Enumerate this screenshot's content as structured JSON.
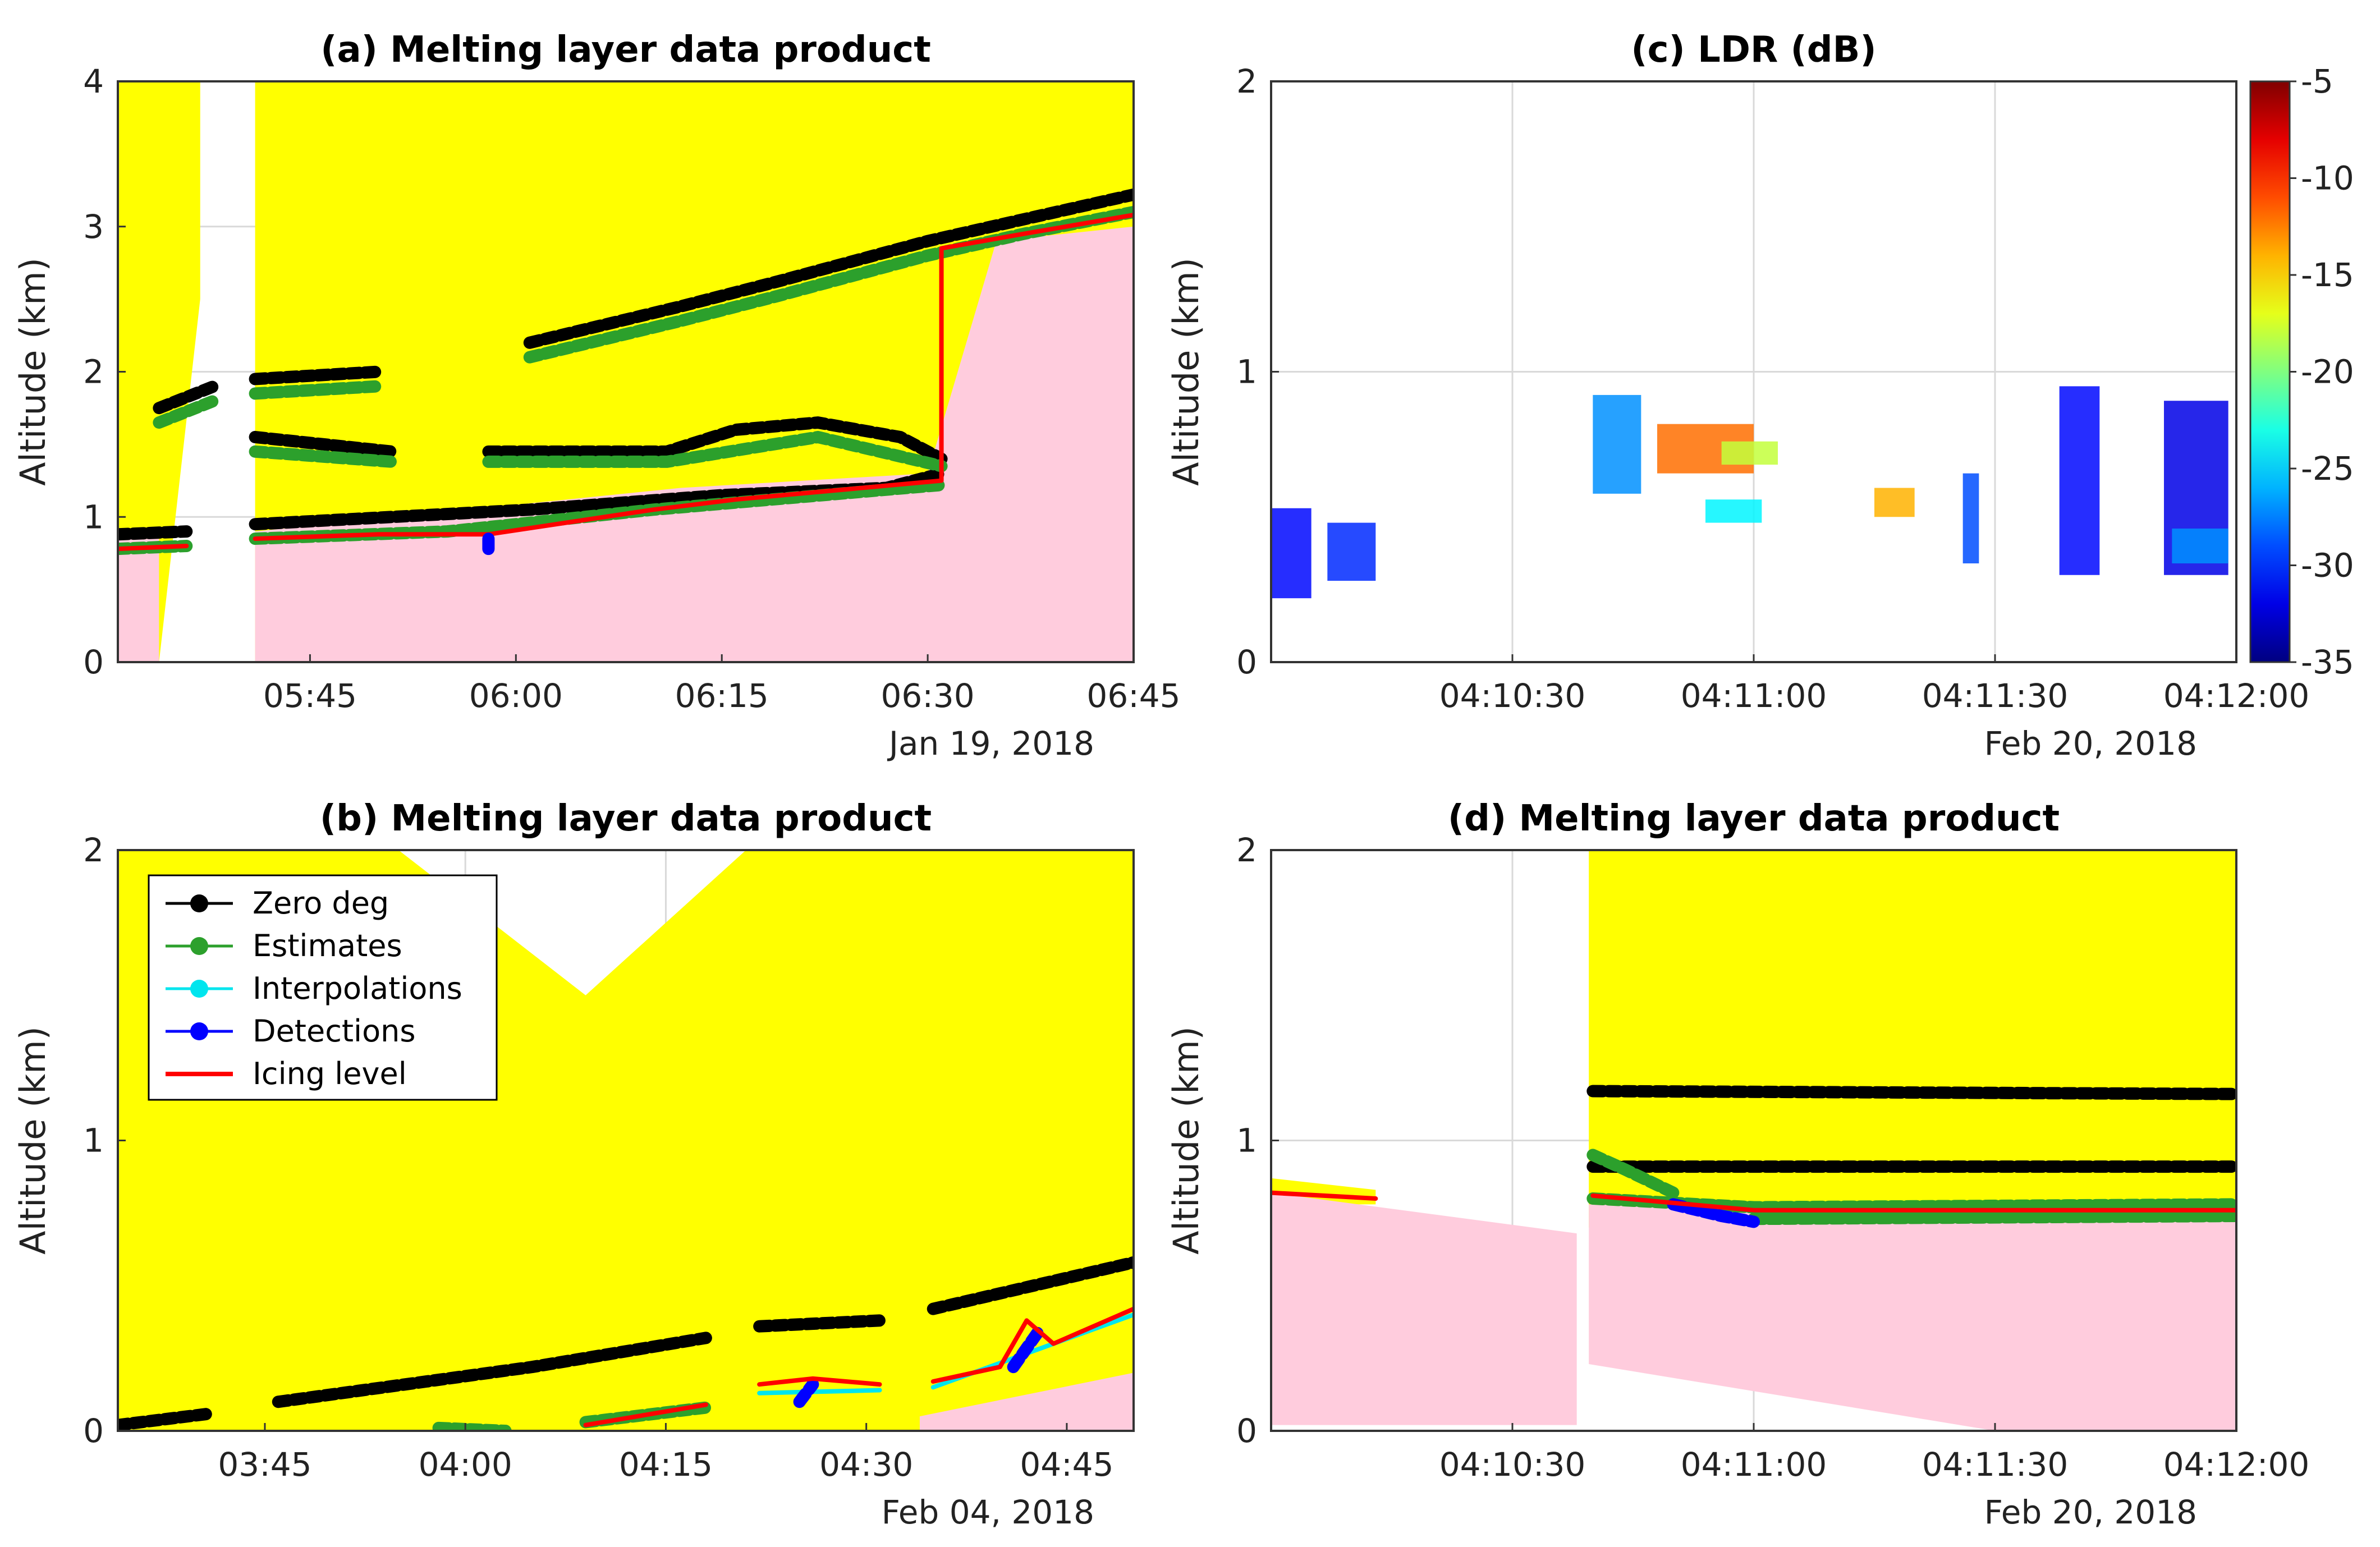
{
  "colors": {
    "yellow": "#ffff00",
    "pink": "#ffccdd",
    "zero_deg": "#000000",
    "estimates": "#2ca02c",
    "interpolations": "#00e5ee",
    "detections": "#0000ff",
    "icing": "#ff0000"
  },
  "chart_data": [
    {
      "id": "a",
      "type": "line",
      "title": "(a) Melting layer data product",
      "ylabel": "Altitude (km)",
      "ylim": [
        0,
        4
      ],
      "yticks": [
        "0",
        "1",
        "2",
        "3",
        "4"
      ],
      "xlim": [
        331,
        405
      ],
      "xtick_values": [
        345,
        360,
        375,
        390,
        405
      ],
      "xticks": [
        "05:45",
        "06:00",
        "06:15",
        "06:30",
        "06:45"
      ],
      "date_label": "Jan 19, 2018",
      "yellow_polygon": [
        [
          331,
          4
        ],
        [
          337,
          4
        ],
        [
          337,
          2.5
        ],
        [
          334,
          0
        ],
        [
          331,
          0
        ]
      ],
      "yellow_polygon2": [
        [
          341,
          4
        ],
        [
          405,
          4
        ],
        [
          405,
          0
        ],
        [
          341,
          0
        ]
      ],
      "pink_regions": [
        [
          [
            331,
            0
          ],
          [
            331,
            0.85
          ],
          [
            334,
            0.85
          ],
          [
            334,
            0
          ]
        ],
        [
          [
            341,
            0
          ],
          [
            341,
            0.9
          ],
          [
            372,
            1.2
          ],
          [
            390,
            1.3
          ],
          [
            395,
            2.9
          ],
          [
            405,
            3.0
          ],
          [
            405,
            0
          ]
        ]
      ],
      "series": [
        {
          "name": "Zero deg",
          "color": "#000000",
          "kind": "points",
          "segments": [
            [
              [
                331,
                0.88
              ],
              [
                336,
                0.9
              ]
            ],
            [
              [
                334,
                1.75
              ],
              [
                338,
                1.9
              ]
            ],
            [
              [
                341,
                1.95
              ],
              [
                350,
                2.0
              ]
            ],
            [
              [
                341,
                1.55
              ],
              [
                351,
                1.45
              ]
            ],
            [
              [
                341,
                0.95
              ],
              [
                351,
                1.0
              ],
              [
                361,
                1.05
              ],
              [
                375,
                1.15
              ],
              [
                387,
                1.2
              ],
              [
                391,
                1.3
              ]
            ],
            [
              [
                358,
                1.45
              ],
              [
                371,
                1.45
              ],
              [
                376,
                1.6
              ],
              [
                382,
                1.65
              ],
              [
                388,
                1.55
              ],
              [
                391,
                1.4
              ]
            ],
            [
              [
                361,
                2.2
              ],
              [
                372,
                2.45
              ],
              [
                379,
                2.62
              ],
              [
                390,
                2.9
              ],
              [
                397,
                3.05
              ],
              [
                405,
                3.22
              ]
            ]
          ]
        },
        {
          "name": "Estimates",
          "color": "#2ca02c",
          "kind": "points",
          "segments": [
            [
              [
                331,
                0.78
              ],
              [
                336,
                0.8
              ]
            ],
            [
              [
                334,
                1.65
              ],
              [
                338,
                1.8
              ]
            ],
            [
              [
                341,
                1.85
              ],
              [
                350,
                1.9
              ]
            ],
            [
              [
                341,
                1.45
              ],
              [
                351,
                1.38
              ]
            ],
            [
              [
                341,
                0.85
              ],
              [
                355,
                0.9
              ],
              [
                370,
                1.05
              ],
              [
                391,
                1.22
              ]
            ],
            [
              [
                358,
                1.38
              ],
              [
                371,
                1.38
              ],
              [
                382,
                1.55
              ],
              [
                391,
                1.35
              ]
            ],
            [
              [
                361,
                2.1
              ],
              [
                372,
                2.35
              ],
              [
                379,
                2.52
              ],
              [
                390,
                2.8
              ],
              [
                397,
                2.95
              ],
              [
                405,
                3.1
              ]
            ]
          ]
        },
        {
          "name": "Icing level",
          "color": "#ff0000",
          "kind": "line",
          "segments": [
            [
              [
                331,
                0.78
              ],
              [
                336,
                0.8
              ]
            ],
            [
              [
                341,
                0.85
              ],
              [
                350,
                0.88
              ],
              [
                358,
                0.88
              ],
              [
                370,
                1.05
              ],
              [
                376,
                1.12
              ],
              [
                391,
                1.25
              ],
              [
                391,
                2.85
              ],
              [
                397,
                2.95
              ],
              [
                405,
                3.08
              ]
            ]
          ]
        },
        {
          "name": "Detections",
          "color": "#0000ff",
          "kind": "points",
          "segments": [
            [
              [
                358,
                0.78
              ],
              [
                358,
                0.88
              ]
            ]
          ]
        }
      ]
    },
    {
      "id": "b",
      "type": "line",
      "title": "(b) Melting layer data product",
      "ylabel": "Altitude (km)",
      "ylim": [
        0,
        2
      ],
      "yticks": [
        "0",
        "1",
        "2"
      ],
      "xlim": [
        214,
        290
      ],
      "xtick_values": [
        225,
        240,
        255,
        270,
        285
      ],
      "xticks": [
        "03:45",
        "04:00",
        "04:15",
        "04:30",
        "04:45"
      ],
      "date_label": "Feb 04, 2018",
      "yellow_polygon": [
        [
          214,
          2
        ],
        [
          235,
          2
        ],
        [
          249,
          1.5
        ],
        [
          261,
          2
        ],
        [
          290,
          2
        ],
        [
          290,
          0
        ],
        [
          214,
          0
        ]
      ],
      "yellow_polygon2": [],
      "pink_regions": [
        [
          [
            274,
            0.05
          ],
          [
            290,
            0.2
          ],
          [
            290,
            0
          ],
          [
            274,
            0
          ]
        ]
      ],
      "series": [
        {
          "name": "Zero deg",
          "color": "#000000",
          "kind": "points",
          "segments": [
            [
              [
                214,
                0.02
              ],
              [
                221,
                0.06
              ]
            ],
            [
              [
                226,
                0.1
              ],
              [
                245,
                0.22
              ],
              [
                258,
                0.32
              ]
            ],
            [
              [
                262,
                0.36
              ],
              [
                271,
                0.38
              ]
            ],
            [
              [
                275,
                0.42
              ],
              [
                290,
                0.58
              ]
            ]
          ]
        },
        {
          "name": "Estimates",
          "color": "#2ca02c",
          "kind": "points",
          "segments": [
            [
              [
                238,
                0.01
              ],
              [
                243,
                0.0
              ]
            ],
            [
              [
                249,
                0.03
              ],
              [
                258,
                0.08
              ]
            ]
          ]
        },
        {
          "name": "Interpolations",
          "color": "#00e5ee",
          "kind": "line",
          "segments": [
            [
              [
                262,
                0.13
              ],
              [
                271,
                0.14
              ]
            ],
            [
              [
                275,
                0.15
              ],
              [
                290,
                0.4
              ]
            ]
          ]
        },
        {
          "name": "Detections",
          "color": "#0000ff",
          "kind": "points",
          "segments": [
            [
              [
                265,
                0.1
              ],
              [
                266,
                0.16
              ]
            ],
            [
              [
                281,
                0.22
              ],
              [
                283,
                0.35
              ]
            ]
          ]
        },
        {
          "name": "Icing level",
          "color": "#ff0000",
          "kind": "line",
          "segments": [
            [
              [
                249,
                0.02
              ],
              [
                258,
                0.09
              ]
            ],
            [
              [
                262,
                0.16
              ],
              [
                266,
                0.18
              ],
              [
                271,
                0.16
              ]
            ],
            [
              [
                275,
                0.17
              ],
              [
                280,
                0.22
              ],
              [
                282,
                0.38
              ],
              [
                284,
                0.3
              ],
              [
                290,
                0.42
              ]
            ]
          ]
        }
      ],
      "legend": [
        {
          "label": "Zero deg",
          "color": "#000000",
          "marker": "dot"
        },
        {
          "label": "Estimates",
          "color": "#2ca02c",
          "marker": "dot"
        },
        {
          "label": "Interpolations",
          "color": "#00e5ee",
          "marker": "dot"
        },
        {
          "label": "Detections",
          "color": "#0000ff",
          "marker": "dot"
        },
        {
          "label": "Icing level",
          "color": "#ff0000",
          "marker": "line"
        }
      ]
    },
    {
      "id": "c",
      "type": "heatmap",
      "title": "(c) LDR (dB)",
      "ylabel": "Altitude (km)",
      "ylim": [
        0,
        2
      ],
      "yticks": [
        "0",
        "1",
        "2"
      ],
      "xlim": [
        0,
        120
      ],
      "xtick_values": [
        30,
        60,
        90,
        120
      ],
      "xticks": [
        "04:10:30",
        "04:11:00",
        "04:11:30",
        "04:12:00"
      ],
      "date_label": "Feb 20, 2018",
      "colorbar": {
        "min": -35,
        "max": -5,
        "ticks": [
          "-5",
          "-10",
          "-15",
          "-20",
          "-25",
          "-30",
          "-35"
        ]
      },
      "patches": [
        {
          "x": [
            0,
            5
          ],
          "y": [
            0.22,
            0.53
          ],
          "ldr": -31
        },
        {
          "x": [
            7,
            13
          ],
          "y": [
            0.28,
            0.48
          ],
          "ldr": -30
        },
        {
          "x": [
            40,
            46
          ],
          "y": [
            0.58,
            0.92
          ],
          "ldr": -27
        },
        {
          "x": [
            48,
            60
          ],
          "y": [
            0.65,
            0.82
          ],
          "ldr": -12
        },
        {
          "x": [
            56,
            63
          ],
          "y": [
            0.68,
            0.76
          ],
          "ldr": -18
        },
        {
          "x": [
            54,
            61
          ],
          "y": [
            0.48,
            0.56
          ],
          "ldr": -24
        },
        {
          "x": [
            75,
            80
          ],
          "y": [
            0.5,
            0.6
          ],
          "ldr": -14
        },
        {
          "x": [
            86,
            88
          ],
          "y": [
            0.34,
            0.65
          ],
          "ldr": -29
        },
        {
          "x": [
            98,
            103
          ],
          "y": [
            0.3,
            0.95
          ],
          "ldr": -31
        },
        {
          "x": [
            111,
            119
          ],
          "y": [
            0.3,
            0.9
          ],
          "ldr": -32
        },
        {
          "x": [
            112,
            119
          ],
          "y": [
            0.34,
            0.46
          ],
          "ldr": -27
        }
      ]
    },
    {
      "id": "d",
      "type": "line",
      "title": "(d) Melting layer data product",
      "ylabel": "Altitude (km)",
      "ylim": [
        0,
        2
      ],
      "yticks": [
        "0",
        "1",
        "2"
      ],
      "xlim": [
        0,
        120
      ],
      "xtick_values": [
        30,
        60,
        90,
        120
      ],
      "xticks": [
        "04:10:30",
        "04:11:00",
        "04:11:30",
        "04:12:00"
      ],
      "date_label": "Feb 20, 2018",
      "yellow_polygon": [
        [
          39.5,
          2
        ],
        [
          120,
          2
        ],
        [
          120,
          0.7
        ],
        [
          39.5,
          0.7
        ]
      ],
      "yellow_polygon2": [
        [
          0,
          0.87
        ],
        [
          13,
          0.83
        ],
        [
          13,
          0.78
        ],
        [
          0,
          0.78
        ]
      ],
      "pink_regions": [
        [
          [
            0,
            0.02
          ],
          [
            0,
            0.82
          ],
          [
            38,
            0.68
          ],
          [
            38,
            0.02
          ]
        ],
        [
          [
            39.5,
            0.23
          ],
          [
            39.5,
            0.78
          ],
          [
            120,
            0.75
          ],
          [
            120,
            0.0
          ],
          [
            90,
            0.0
          ]
        ]
      ],
      "series": [
        {
          "name": "Zero deg",
          "color": "#000000",
          "kind": "points",
          "segments": [
            [
              [
                40,
                1.17
              ],
              [
                120,
                1.16
              ]
            ],
            [
              [
                40,
                0.91
              ],
              [
                120,
                0.91
              ]
            ]
          ]
        },
        {
          "name": "Estimates",
          "color": "#2ca02c",
          "kind": "points",
          "segments": [
            [
              [
                40,
                0.95
              ],
              [
                44,
                0.9
              ],
              [
                50,
                0.82
              ]
            ],
            [
              [
                40,
                0.8
              ],
              [
                60,
                0.77
              ],
              [
                120,
                0.78
              ]
            ],
            [
              [
                60,
                0.73
              ],
              [
                120,
                0.74
              ]
            ]
          ]
        },
        {
          "name": "Detections",
          "color": "#0000ff",
          "kind": "points",
          "segments": [
            [
              [
                50,
                0.78
              ],
              [
                56,
                0.74
              ],
              [
                60,
                0.72
              ]
            ]
          ]
        },
        {
          "name": "Icing level",
          "color": "#ff0000",
          "kind": "line",
          "segments": [
            [
              [
                0,
                0.82
              ],
              [
                13,
                0.8
              ]
            ],
            [
              [
                40,
                0.81
              ],
              [
                60,
                0.76
              ],
              [
                120,
                0.76
              ]
            ]
          ]
        }
      ]
    }
  ]
}
